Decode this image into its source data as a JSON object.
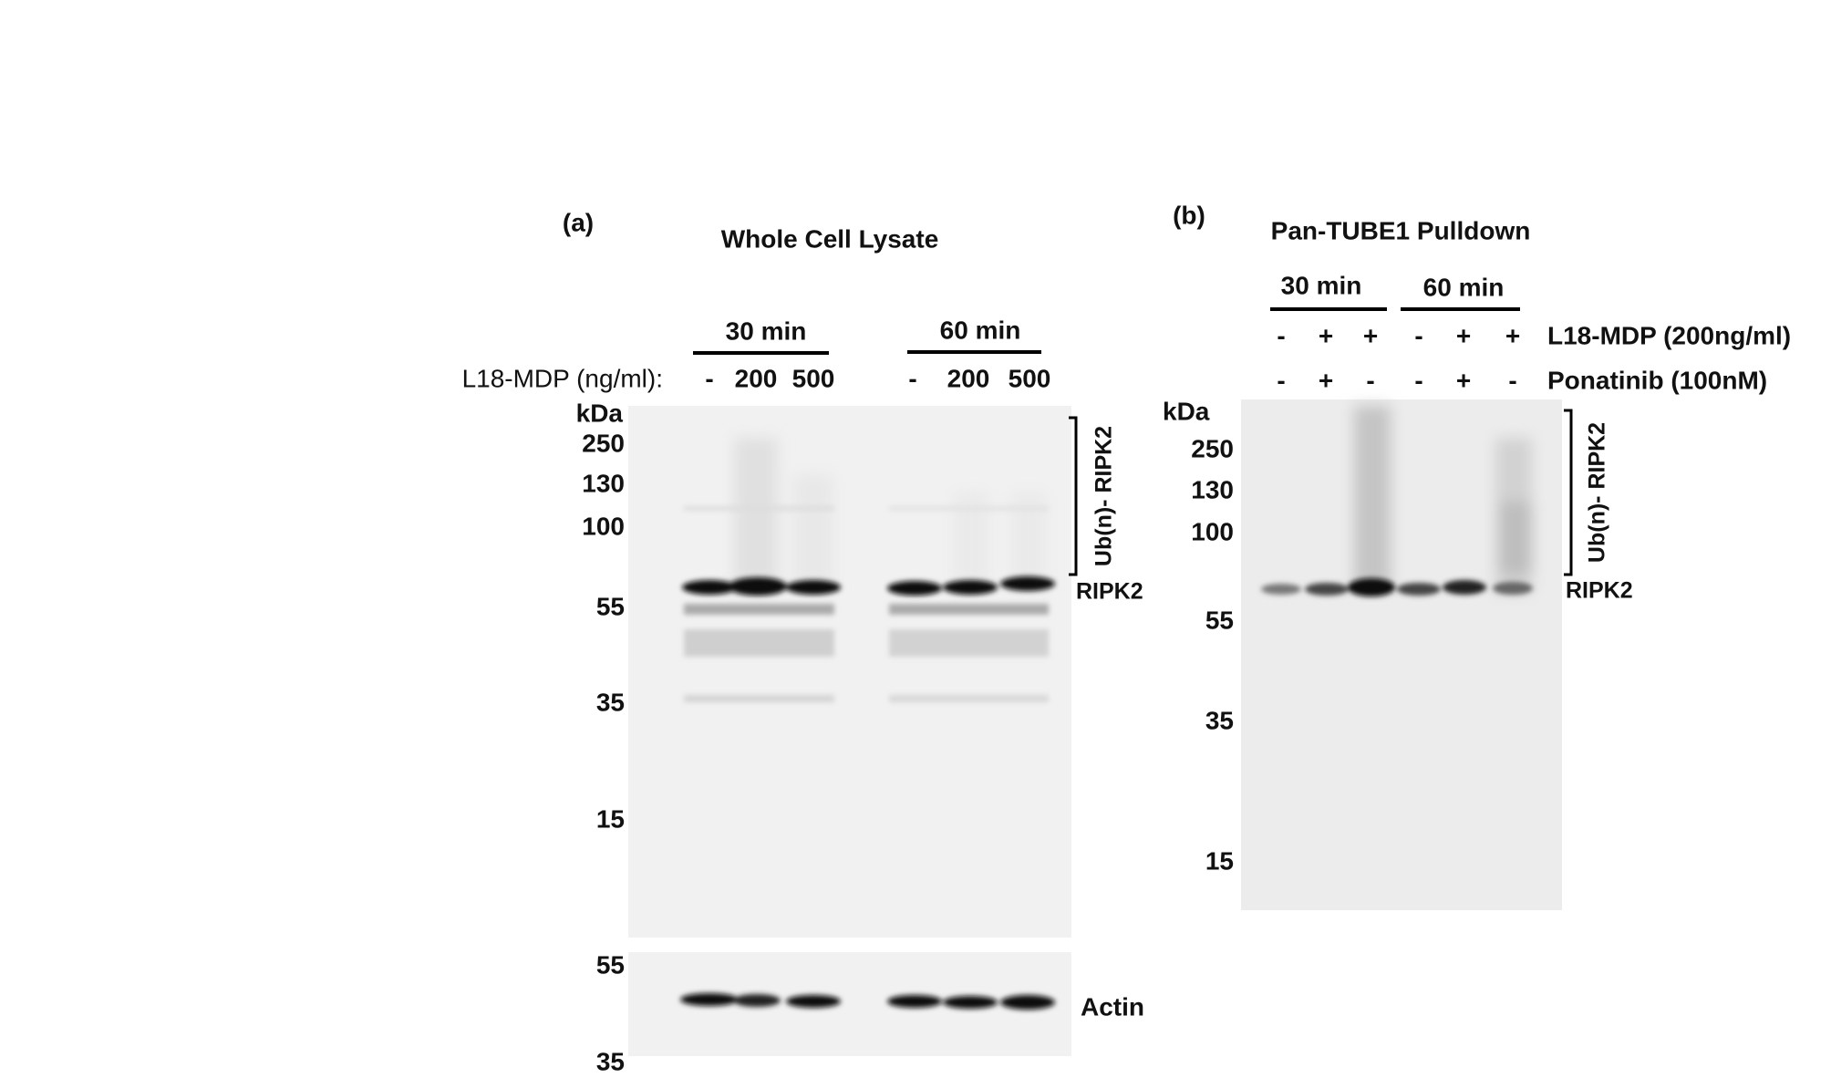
{
  "panel_a": {
    "label": "(a)",
    "title": "Whole Cell Lysate",
    "time_points": [
      "30 min",
      "60 min"
    ],
    "treatment_label": "L18-MDP (ng/ml):",
    "lanes": [
      "-",
      "200",
      "500",
      "-",
      "200",
      "500"
    ],
    "kda_label": "kDa",
    "markers": [
      "250",
      "130",
      "100",
      "55",
      "35",
      "15"
    ],
    "bracket_label": "Ub(n)- RIPK2",
    "band_label": "RIPK2",
    "actin_markers": [
      "55",
      "35"
    ],
    "actin_label": "Actin"
  },
  "panel_b": {
    "label": "(b)",
    "title": "Pan-TUBE1 Pulldown",
    "time_points": [
      "30 min",
      "60 min"
    ],
    "rows": [
      {
        "label": "L18-MDP (200ng/ml)",
        "lanes": [
          "-",
          "+",
          "+",
          "-",
          "+",
          "+"
        ]
      },
      {
        "label": "Ponatinib (100nM)",
        "lanes": [
          "-",
          "+",
          "-",
          "-",
          "+",
          "-"
        ]
      }
    ],
    "kda_label": "kDa",
    "markers": [
      "250",
      "130",
      "100",
      "55",
      "35",
      "15"
    ],
    "bracket_label": "Ub(n)- RIPK2",
    "band_label": "RIPK2"
  }
}
